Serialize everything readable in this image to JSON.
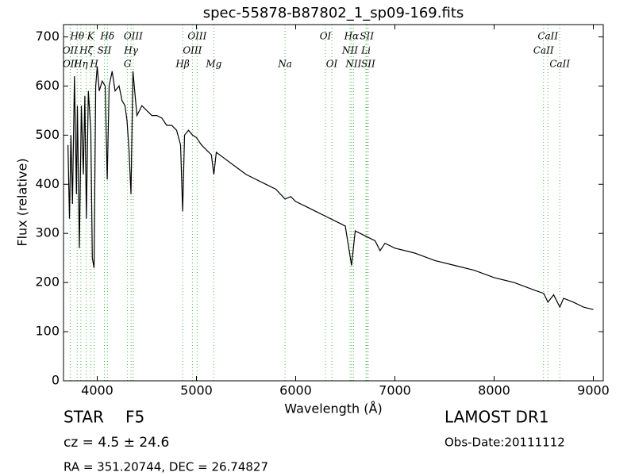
{
  "chart_data": {
    "type": "line",
    "title": "spec-55878-B87802_1_sp09-169.fits",
    "x_label": "Wavelength (Å)",
    "y_label": "Flux (relative)",
    "xlim": [
      3660,
      9100
    ],
    "ylim": [
      0,
      725
    ],
    "xticks": [
      4000,
      5000,
      6000,
      7000,
      8000,
      9000
    ],
    "yticks": [
      0,
      100,
      200,
      300,
      400,
      500,
      600,
      700
    ],
    "color": "#000000",
    "line_color": "#44bb44",
    "x": [
      3705,
      3720,
      3735,
      3750,
      3770,
      3790,
      3800,
      3820,
      3840,
      3860,
      3875,
      3890,
      3910,
      3935,
      3950,
      3968,
      3985,
      4000,
      4020,
      4050,
      4080,
      4101,
      4120,
      4150,
      4180,
      4220,
      4250,
      4280,
      4300,
      4320,
      4340,
      4360,
      4400,
      4450,
      4500,
      4550,
      4600,
      4650,
      4700,
      4750,
      4800,
      4840,
      4861,
      4880,
      4920,
      4960,
      5000,
      5050,
      5100,
      5150,
      5175,
      5200,
      5300,
      5400,
      5500,
      5600,
      5700,
      5800,
      5893,
      5950,
      6000,
      6100,
      6200,
      6300,
      6400,
      6500,
      6563,
      6600,
      6700,
      6800,
      6850,
      6900,
      7000,
      7200,
      7400,
      7600,
      7800,
      8000,
      8200,
      8400,
      8500,
      8542,
      8600,
      8662,
      8700,
      8800,
      8900,
      9000
    ],
    "values": [
      480,
      330,
      500,
      360,
      620,
      380,
      560,
      270,
      560,
      420,
      580,
      330,
      590,
      510,
      250,
      230,
      600,
      640,
      590,
      610,
      600,
      410,
      600,
      630,
      590,
      600,
      570,
      560,
      530,
      470,
      380,
      630,
      540,
      560,
      550,
      540,
      540,
      535,
      520,
      520,
      510,
      480,
      345,
      500,
      510,
      500,
      495,
      480,
      470,
      460,
      420,
      465,
      450,
      435,
      420,
      410,
      400,
      390,
      370,
      375,
      365,
      355,
      345,
      335,
      325,
      315,
      235,
      305,
      295,
      285,
      265,
      280,
      270,
      260,
      245,
      235,
      225,
      210,
      200,
      185,
      178,
      160,
      175,
      150,
      168,
      160,
      150,
      145
    ],
    "lines": [
      {
        "label": "Hθ",
        "x": 3798,
        "row": 1
      },
      {
        "label": "K",
        "x": 3934,
        "row": 1
      },
      {
        "label": "Hδ",
        "x": 4102,
        "row": 1
      },
      {
        "label": "OIII",
        "x": 4363,
        "row": 1
      },
      {
        "label": "OIII",
        "x": 5007,
        "row": 1
      },
      {
        "label": "OI",
        "x": 6300,
        "row": 1
      },
      {
        "label": "Hα",
        "x": 6563,
        "row": 1
      },
      {
        "label": "SII",
        "x": 6717,
        "row": 1
      },
      {
        "label": "CaII",
        "x": 8542,
        "row": 1
      },
      {
        "label": "OII",
        "x": 3727,
        "row": 2
      },
      {
        "label": "Hζ",
        "x": 3889,
        "row": 2
      },
      {
        "label": "SII",
        "x": 4072,
        "row": 2
      },
      {
        "label": "Hγ",
        "x": 4341,
        "row": 2
      },
      {
        "label": "OIII",
        "x": 4959,
        "row": 2
      },
      {
        "label": "NII",
        "x": 6548,
        "row": 2
      },
      {
        "label": "Li",
        "x": 6708,
        "row": 2
      },
      {
        "label": "CaII",
        "x": 8498,
        "row": 2
      },
      {
        "label": "OII",
        "x": 3729,
        "row": 3
      },
      {
        "label": "Hη",
        "x": 3835,
        "row": 3
      },
      {
        "label": "H",
        "x": 3969,
        "row": 3
      },
      {
        "label": "G",
        "x": 4305,
        "row": 3
      },
      {
        "label": "Hβ",
        "x": 4861,
        "row": 3
      },
      {
        "label": "Mg",
        "x": 5175,
        "row": 3
      },
      {
        "label": "Na",
        "x": 5893,
        "row": 3
      },
      {
        "label": "OI",
        "x": 6364,
        "row": 3
      },
      {
        "label": "NII",
        "x": 6583,
        "row": 3
      },
      {
        "label": "SII",
        "x": 6731,
        "row": 3
      },
      {
        "label": "CaII",
        "x": 8662,
        "row": 3
      }
    ],
    "info": {
      "class": "STAR",
      "subclass": "F5",
      "cz": "cz = 4.5 ± 24.6",
      "coords": "RA = 351.20744, DEC = 26.74827",
      "release": "LAMOST DR1",
      "date": "Obs-Date:20111112"
    }
  }
}
